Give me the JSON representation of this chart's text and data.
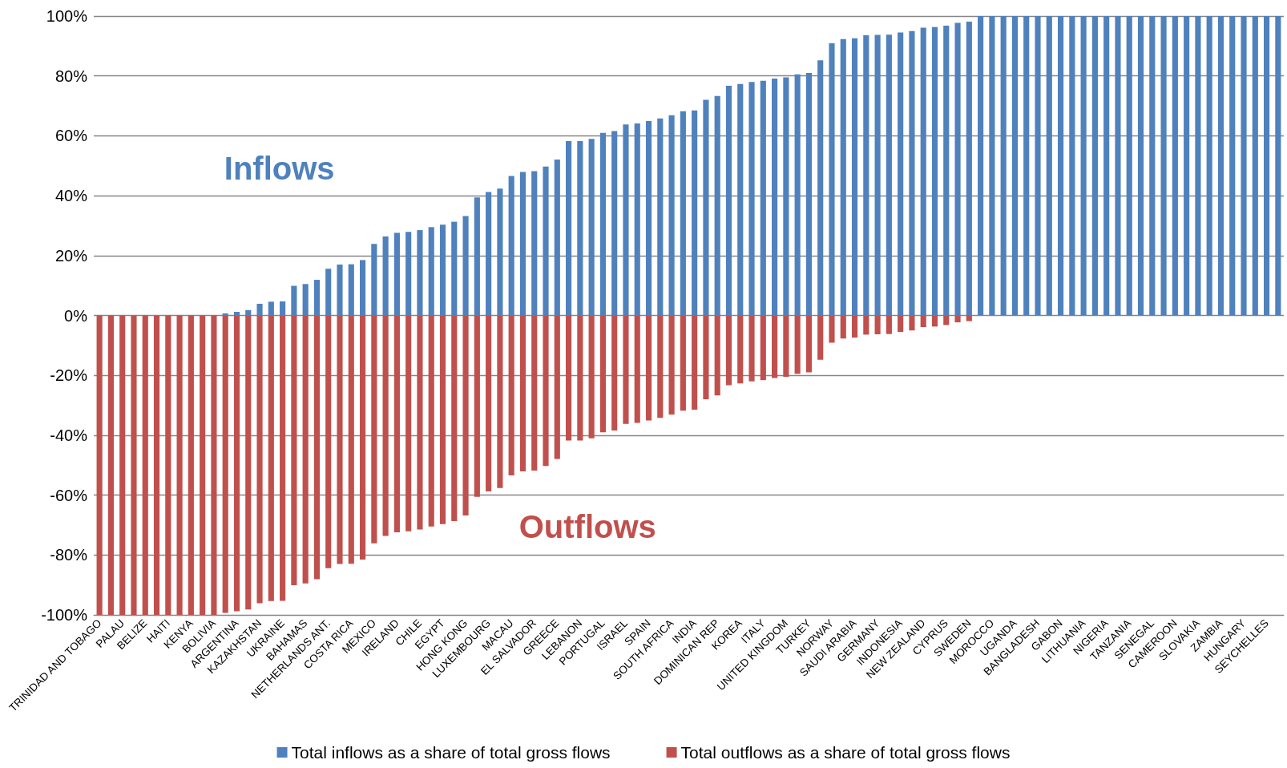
{
  "chart_data": {
    "type": "bar",
    "stacked": true,
    "categories": [
      "TRINIDAD AND TOBAGO",
      null,
      "PALAU",
      null,
      "BELIZE",
      null,
      "HAITI",
      null,
      "KENYA",
      null,
      "BOLIVIA",
      null,
      "ARGENTINA",
      null,
      "KAZAKHSTAN",
      null,
      "UKRAINE",
      null,
      "BAHAMAS",
      null,
      "NETHERLANDS ANT.",
      null,
      "COSTA RICA",
      null,
      "MEXICO",
      null,
      "IRELAND",
      null,
      "CHILE",
      null,
      "EGYPT",
      null,
      "HONG KONG",
      null,
      "LUXEMBOURG",
      null,
      "MACAU",
      null,
      "EL SALVADOR",
      null,
      "GREECE",
      null,
      "LEBANON",
      null,
      "PORTUGAL",
      null,
      "ISRAEL",
      null,
      "SPAIN",
      null,
      "SOUTH AFRICA",
      null,
      "INDIA",
      null,
      "DOMINICAN REP",
      null,
      "KOREA",
      null,
      "ITALY",
      null,
      "UNITED KINGDOM",
      null,
      "TURKEY",
      null,
      "NORWAY",
      null,
      "SAUDI ARABIA",
      null,
      "GERMANY",
      null,
      "INDONESIA",
      null,
      "NEW ZEALAND",
      null,
      "CYPRUS",
      null,
      "SWEDEN",
      null,
      "MOROCCO",
      null,
      "UGANDA",
      null,
      "BANGLADESH",
      null,
      "GABON",
      null,
      "LITHUANIA",
      null,
      "NIGERIA",
      null,
      "TANZANIA",
      null,
      "SENEGAL",
      null,
      "CAMEROON",
      null,
      "SLOVAKIA",
      null,
      "ZAMBIA",
      null,
      "HUNGARY",
      null,
      "SEYCHELLES",
      null
    ],
    "series": [
      {
        "name": "Total inflows as a share of total gross flows",
        "color": "#4f81bd",
        "values": [
          0,
          0,
          0,
          0,
          0,
          0,
          0,
          0,
          0,
          0,
          0,
          0.7,
          1.2,
          1.8,
          3.9,
          4.6,
          4.7,
          9.9,
          10.5,
          11.9,
          15.6,
          17.0,
          17.1,
          18.5,
          23.9,
          26.4,
          27.6,
          27.9,
          28.5,
          29.5,
          30.3,
          31.3,
          33.2,
          39.4,
          41.2,
          42.4,
          46.6,
          47.9,
          48.2,
          49.7,
          52.1,
          58.2,
          58.2,
          59.0,
          61.0,
          61.6,
          63.8,
          64.1,
          64.9,
          65.8,
          66.9,
          68.2,
          68.5,
          72.0,
          73.3,
          76.7,
          77.3,
          78.0,
          78.4,
          79.1,
          79.5,
          80.5,
          81.0,
          85.2,
          90.9,
          92.3,
          92.6,
          93.6,
          93.7,
          93.8,
          94.5,
          95.0,
          96.1,
          96.3,
          96.8,
          97.7,
          98.1,
          100,
          100,
          100,
          100,
          100,
          100,
          100,
          100,
          100,
          100,
          100,
          100,
          100,
          100,
          100,
          100,
          100,
          100,
          100,
          100,
          100,
          100,
          100,
          100,
          100,
          100,
          100
        ]
      },
      {
        "name": "Total outflows as a share of total gross flows",
        "color": "#c0504d",
        "values": [
          -100,
          -100,
          -100,
          -100,
          -100,
          -100,
          -100,
          -100,
          -100,
          -100,
          -100,
          -99.3,
          -98.8,
          -98.2,
          -96.1,
          -95.4,
          -95.3,
          -90.1,
          -89.5,
          -88.1,
          -84.4,
          -83.0,
          -82.9,
          -81.5,
          -76.1,
          -73.6,
          -72.4,
          -72.1,
          -71.5,
          -70.5,
          -69.7,
          -68.7,
          -66.8,
          -60.6,
          -58.8,
          -57.6,
          -53.4,
          -52.1,
          -51.8,
          -50.3,
          -47.9,
          -41.8,
          -41.8,
          -41.0,
          -39.0,
          -38.4,
          -36.2,
          -35.9,
          -35.1,
          -34.2,
          -33.1,
          -31.8,
          -31.5,
          -28.0,
          -26.7,
          -23.3,
          -22.7,
          -22.0,
          -21.6,
          -20.9,
          -20.5,
          -19.5,
          -19.0,
          -14.8,
          -9.1,
          -7.7,
          -7.4,
          -6.4,
          -6.3,
          -6.2,
          -5.5,
          -5.0,
          -3.9,
          -3.7,
          -3.2,
          -2.3,
          -1.9,
          0,
          0,
          0,
          0,
          0,
          0,
          0,
          0,
          0,
          0,
          0,
          0,
          0,
          0,
          0,
          0,
          0,
          0,
          0,
          0,
          0,
          0,
          0,
          0,
          0,
          0,
          0
        ]
      }
    ],
    "ylim": [
      -100,
      100
    ],
    "yticks": [
      {
        "value": -100,
        "label": "-100%"
      },
      {
        "value": -80,
        "label": "-80%"
      },
      {
        "value": -60,
        "label": "-60%"
      },
      {
        "value": -40,
        "label": "-40%"
      },
      {
        "value": -20,
        "label": "-20%"
      },
      {
        "value": 0,
        "label": "0%"
      },
      {
        "value": 20,
        "label": "20%"
      },
      {
        "value": 40,
        "label": "40%"
      },
      {
        "value": 60,
        "label": "60%"
      },
      {
        "value": 80,
        "label": "80%"
      },
      {
        "value": 100,
        "label": "100%"
      }
    ],
    "grid": "y",
    "legend": "bottom",
    "annotations": [
      "Inflows",
      "Outflows"
    ]
  }
}
